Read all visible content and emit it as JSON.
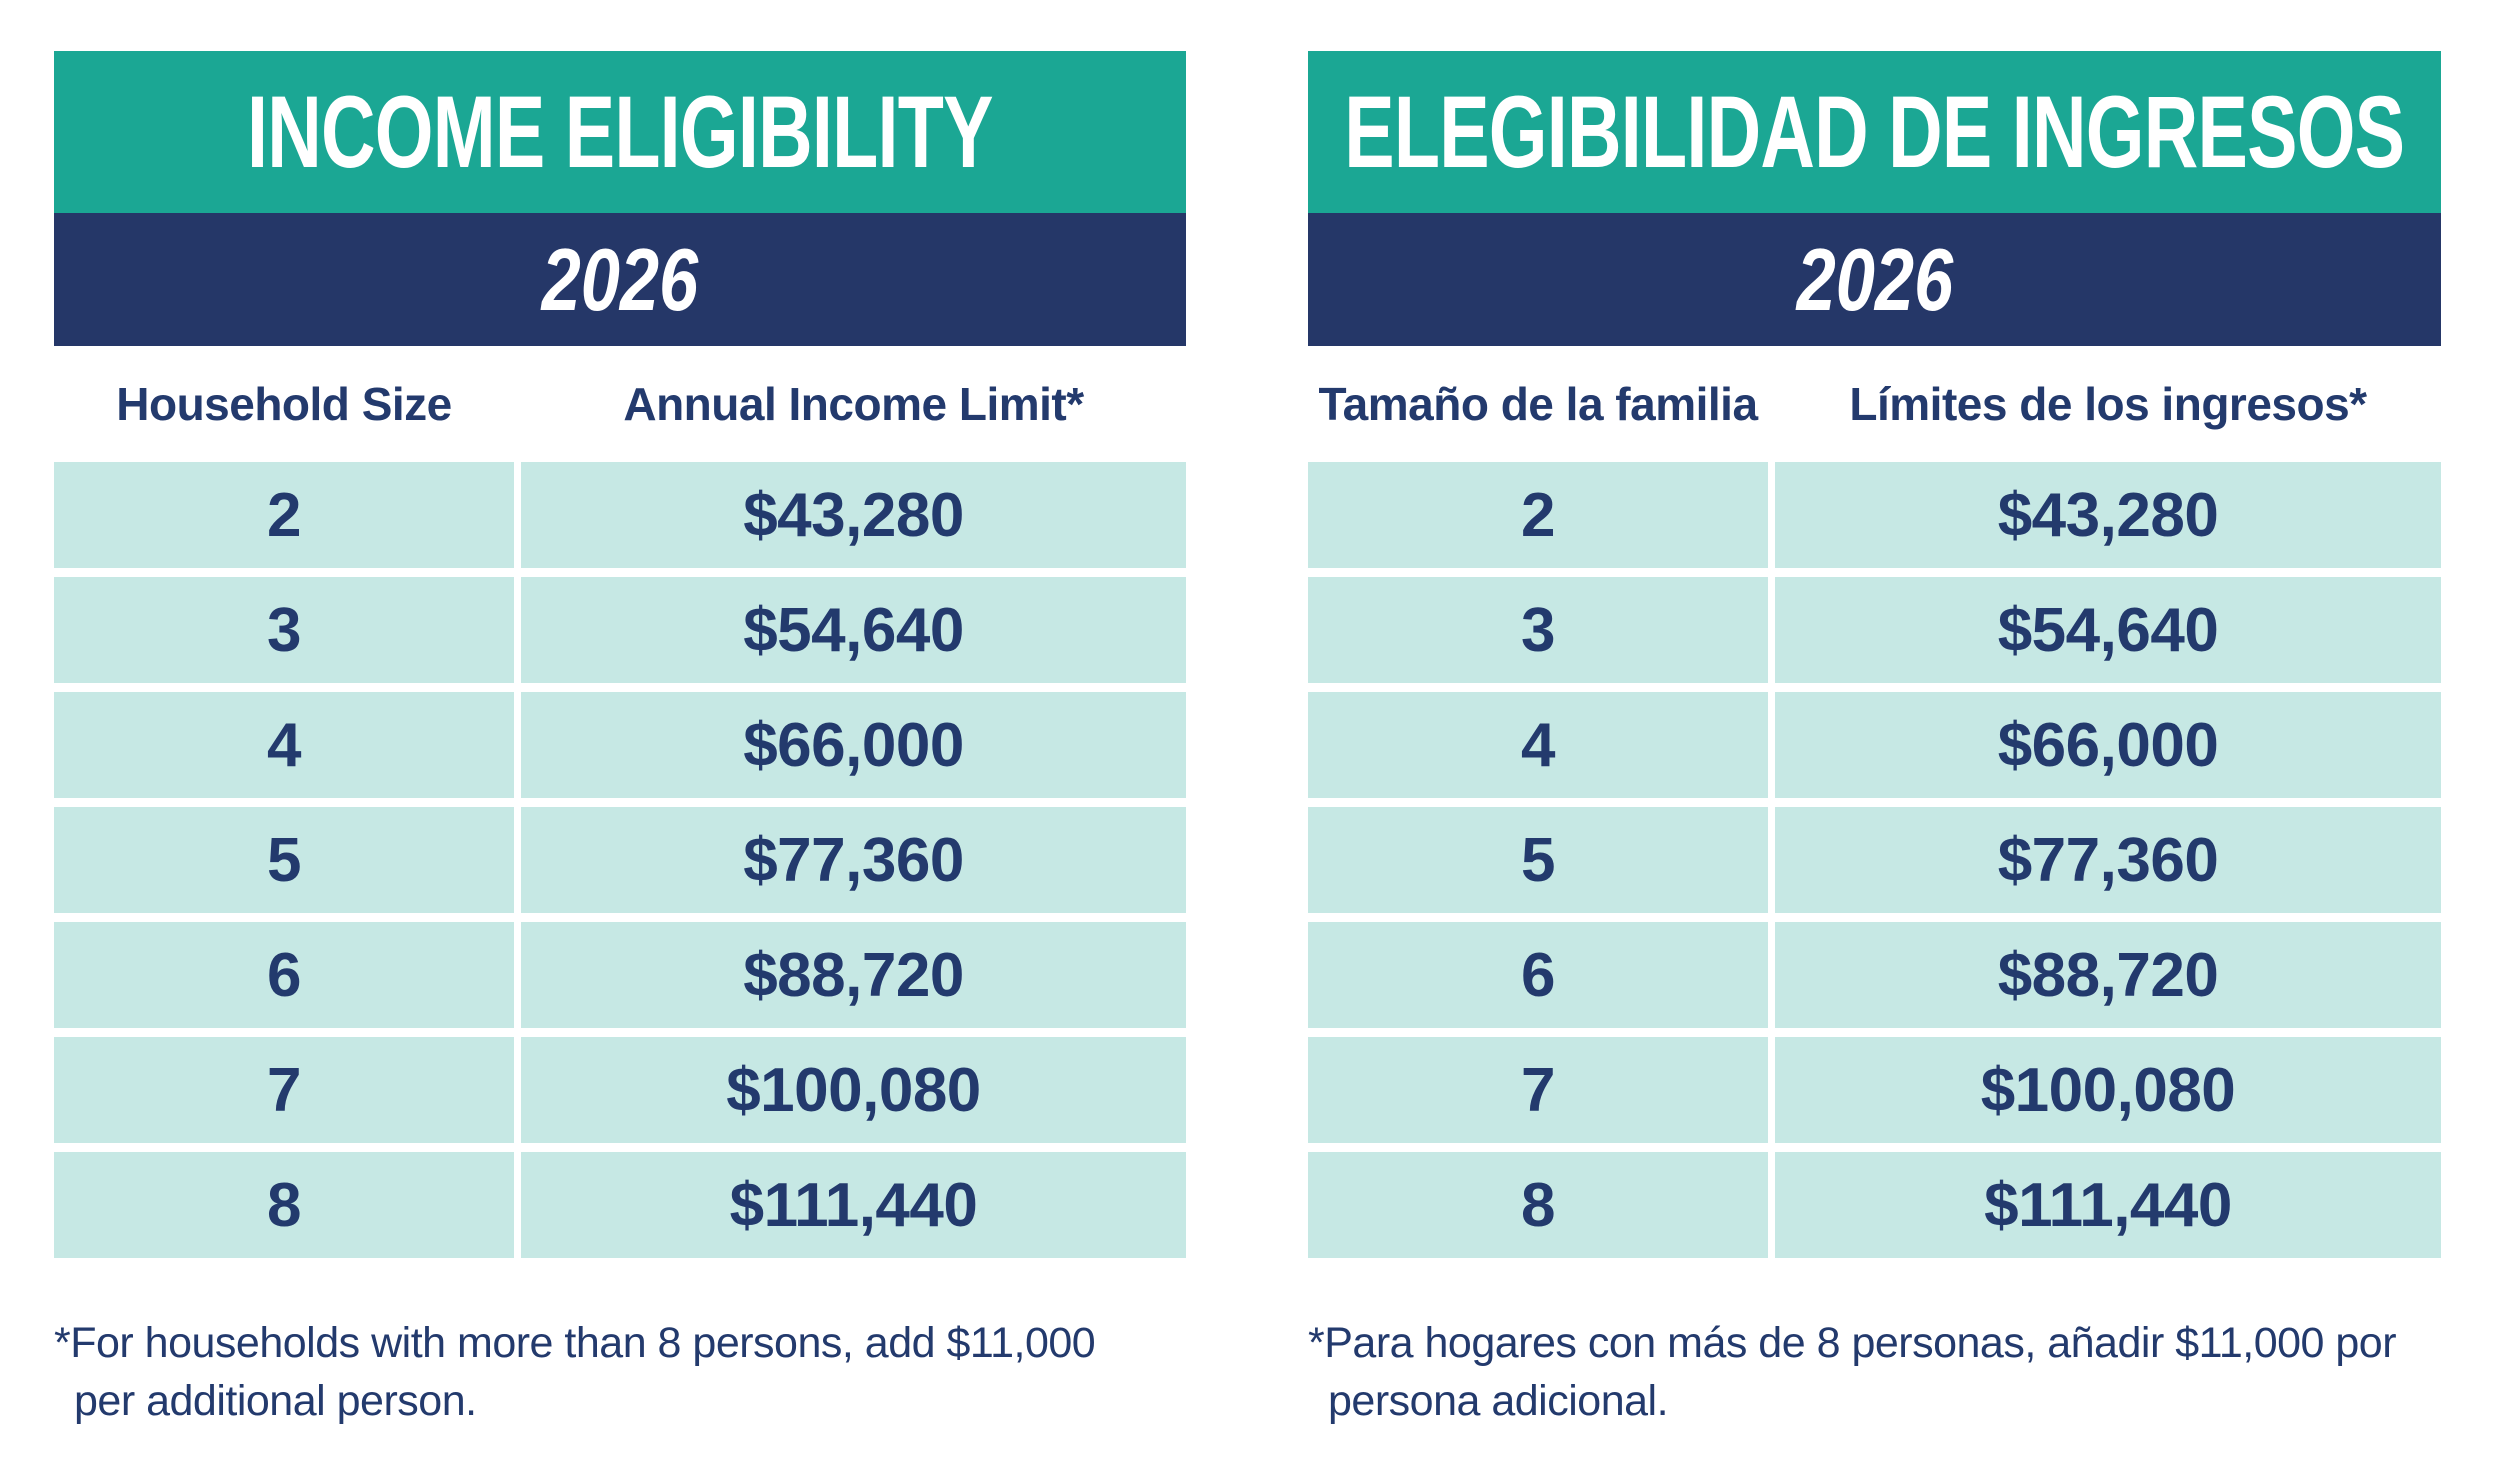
{
  "colors": {
    "header_teal": "#1BA794",
    "band_navy": "#253768",
    "cell_mint": "#C6E8E4",
    "text_navy": "#233A6D",
    "background": "#FFFFFF"
  },
  "tables": [
    {
      "lang": "en",
      "title": "INCOME ELIGIBILITY",
      "year": "2026",
      "columns": [
        "Household Size",
        "Annual Income Limit*"
      ],
      "rows": [
        [
          "2",
          "$43,280"
        ],
        [
          "3",
          "$54,640"
        ],
        [
          "4",
          "$66,000"
        ],
        [
          "5",
          "$77,360"
        ],
        [
          "6",
          "$88,720"
        ],
        [
          "7",
          "$100,080"
        ],
        [
          "8",
          "$111,440"
        ]
      ],
      "footnote": [
        "*For households with more than 8 persons, add $11,000",
        "per additional person."
      ]
    },
    {
      "lang": "es",
      "title": "ELEGIBILIDAD DE INGRESOS",
      "year": "2026",
      "columns": [
        "Tamaño de la familia",
        "Límites de los ingresos*"
      ],
      "rows": [
        [
          "2",
          "$43,280"
        ],
        [
          "3",
          "$54,640"
        ],
        [
          "4",
          "$66,000"
        ],
        [
          "5",
          "$77,360"
        ],
        [
          "6",
          "$88,720"
        ],
        [
          "7",
          "$100,080"
        ],
        [
          "8",
          "$111,440"
        ]
      ],
      "footnote": [
        "*Para hogares con más de 8 personas, añadir $11,000 por",
        "persona adicional."
      ]
    }
  ]
}
